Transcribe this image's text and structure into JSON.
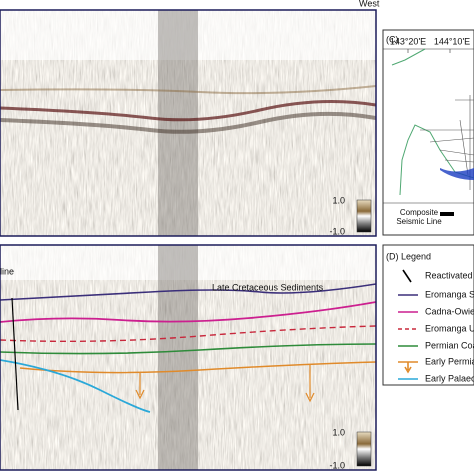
{
  "panel_a": {
    "direction": "West",
    "colorbar": {
      "max": "1.0",
      "min": "-1.0"
    }
  },
  "panel_b": {
    "annotations": [
      "line",
      "Late Cretaceous Sediments"
    ],
    "colorbar": {
      "max": "1.0",
      "min": "-1.0"
    }
  },
  "panel_c": {
    "label": "(C)",
    "longitudes": [
      "143°20'E",
      "144°10'E"
    ],
    "caption": "Composite Seismic Line"
  },
  "panel_d": {
    "title": "(D) Legend",
    "items": [
      "Reactivated F",
      "Eromanga St",
      "Cadna-Owie",
      "Eromanga Ur",
      "Permian Coa",
      "Early Permian",
      "Early Palaeoz"
    ]
  }
}
